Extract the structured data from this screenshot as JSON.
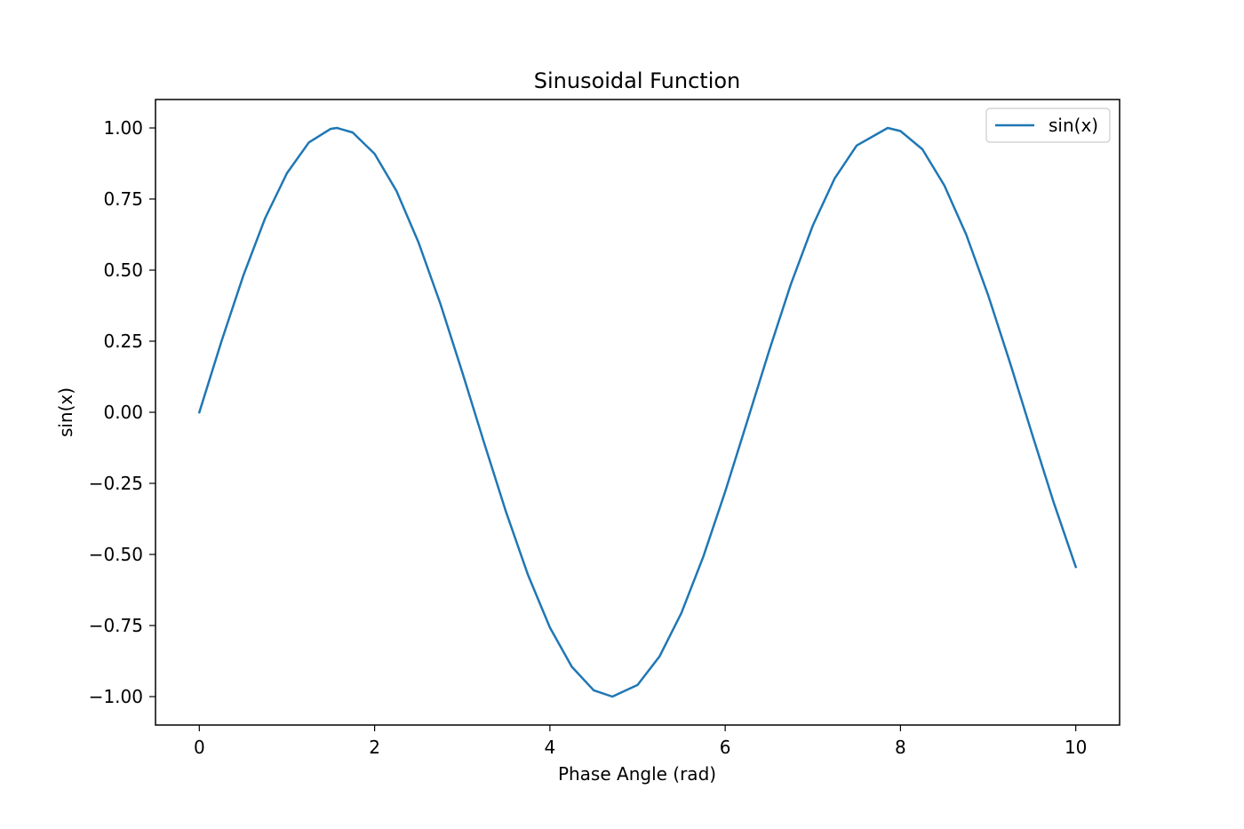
{
  "chart_data": {
    "type": "line",
    "title": "Sinusoidal Function",
    "xlabel": "Phase Angle (rad)",
    "ylabel": "sin(x)",
    "xlim": [
      -0.5,
      10.5
    ],
    "ylim": [
      -1.1,
      1.1
    ],
    "x_ticks": [
      0,
      2,
      4,
      6,
      8,
      10
    ],
    "x_tick_labels": [
      "0",
      "2",
      "4",
      "6",
      "8",
      "10"
    ],
    "y_ticks": [
      1.0,
      0.75,
      0.5,
      0.25,
      0.0,
      -0.25,
      -0.5,
      -0.75,
      -1.0
    ],
    "y_tick_labels": [
      "1.00",
      "0.75",
      "0.50",
      "0.25",
      "0.00",
      "−0.25",
      "−0.50",
      "−0.75",
      "−1.00"
    ],
    "grid": false,
    "legend_position": "top-right",
    "series": [
      {
        "name": "sin(x)",
        "color": "#1f77b4",
        "x": [
          0,
          0.25,
          0.5,
          0.75,
          1.0,
          1.25,
          1.5,
          1.5708,
          1.75,
          2.0,
          2.25,
          2.5,
          2.75,
          3.0,
          3.25,
          3.5,
          3.75,
          4.0,
          4.25,
          4.5,
          4.7124,
          5.0,
          5.25,
          5.5,
          5.75,
          6.0,
          6.25,
          6.5,
          6.75,
          7.0,
          7.25,
          7.5,
          7.854,
          8.0,
          8.25,
          8.5,
          8.75,
          9.0,
          9.25,
          9.5,
          9.75,
          10.0
        ],
        "y": [
          0.0,
          0.247,
          0.479,
          0.682,
          0.841,
          0.949,
          0.997,
          1.0,
          0.984,
          0.909,
          0.778,
          0.598,
          0.382,
          0.141,
          -0.108,
          -0.351,
          -0.572,
          -0.757,
          -0.895,
          -0.978,
          -1.0,
          -0.959,
          -0.859,
          -0.706,
          -0.508,
          -0.279,
          -0.033,
          0.215,
          0.451,
          0.657,
          0.823,
          0.938,
          1.0,
          0.989,
          0.925,
          0.798,
          0.625,
          0.412,
          0.174,
          -0.075,
          -0.319,
          -0.544
        ]
      }
    ]
  }
}
